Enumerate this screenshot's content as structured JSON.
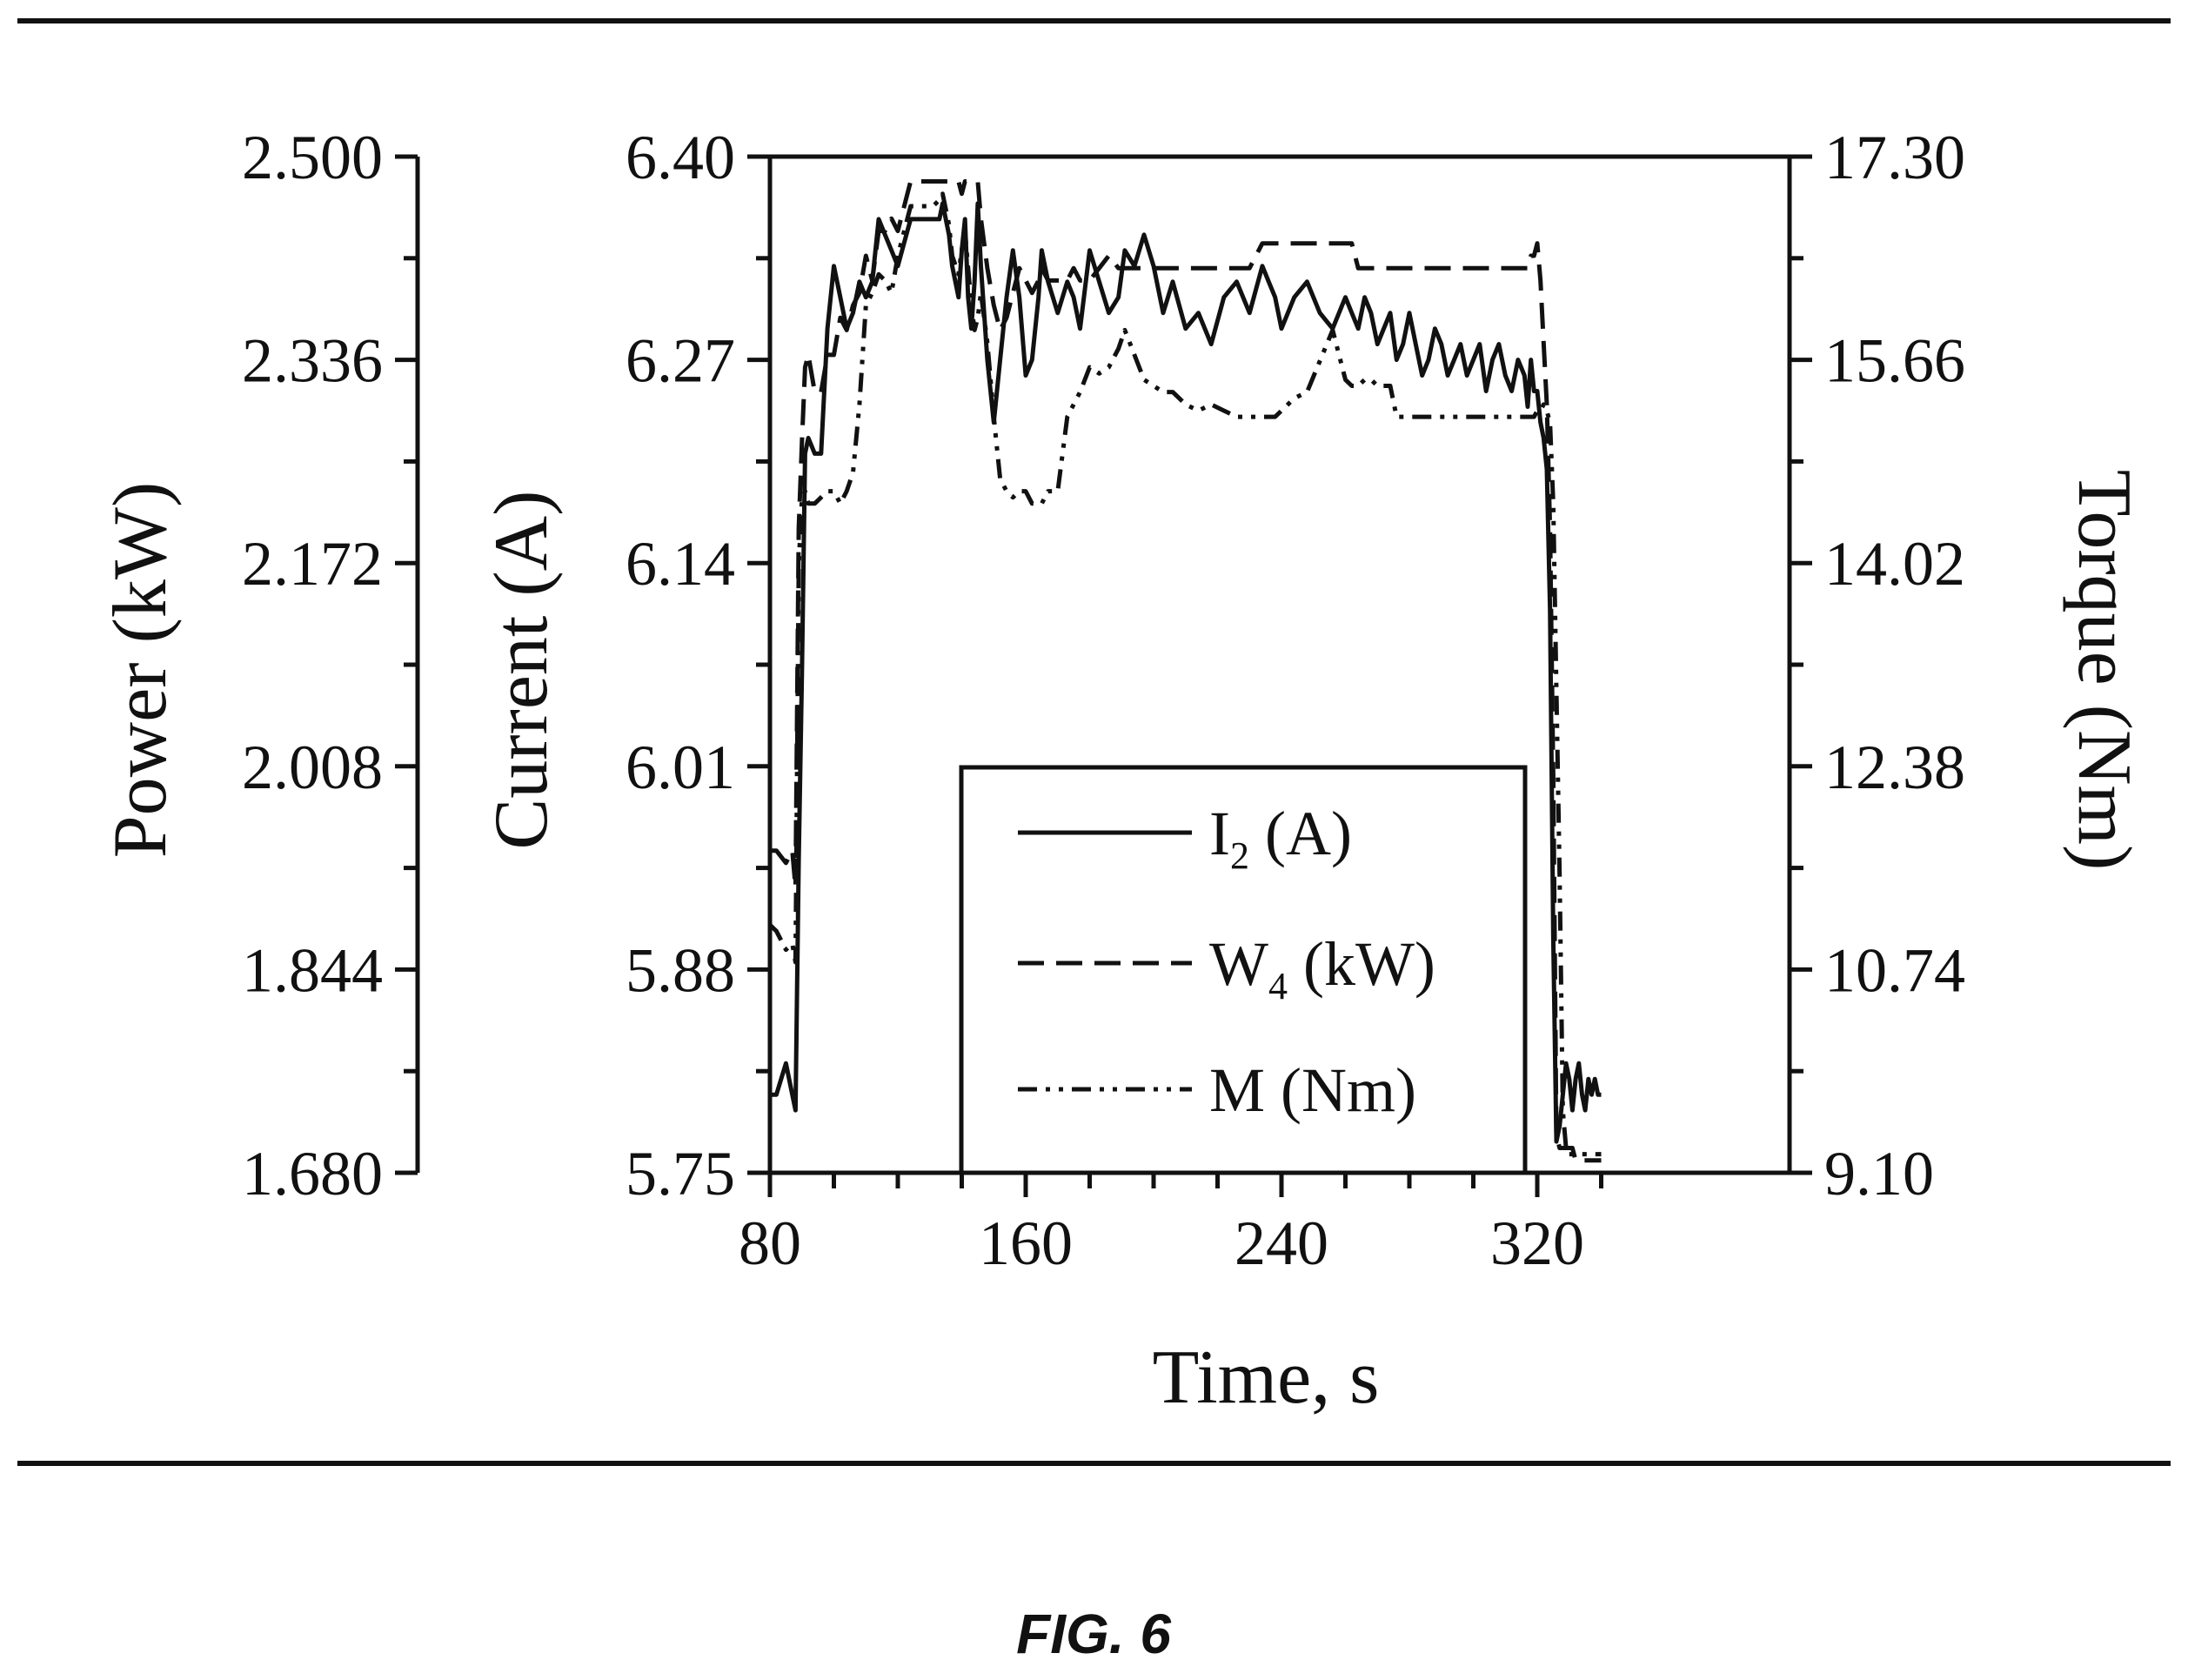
{
  "figure": {
    "caption": "FIG. 6"
  },
  "chart_data": {
    "type": "line",
    "x_axis": {
      "label": "Time, s",
      "range": [
        80,
        325
      ],
      "ticks": [
        "80",
        "160",
        "240",
        "320"
      ],
      "tick_values": [
        80,
        160,
        240,
        320
      ]
    },
    "y_axes": [
      {
        "id": "power",
        "label": "Power (kW)",
        "range": [
          1.68,
          2.5
        ],
        "ticks": [
          "2.500",
          "2.336",
          "2.172",
          "2.008",
          "1.844",
          "1.680"
        ],
        "tick_values": [
          2.5,
          2.336,
          2.172,
          2.008,
          1.844,
          1.68
        ]
      },
      {
        "id": "current",
        "label": "Current (A)",
        "range": [
          5.75,
          6.4
        ],
        "ticks": [
          "6.40",
          "6.27",
          "6.14",
          "6.01",
          "5.88",
          "5.75"
        ],
        "tick_values": [
          6.4,
          6.27,
          6.14,
          6.01,
          5.88,
          5.75
        ]
      },
      {
        "id": "torque",
        "label": "Torque (Nm)",
        "range": [
          9.1,
          17.3
        ],
        "ticks": [
          "17.30",
          "15.66",
          "14.02",
          "12.38",
          "10.74",
          "9.10"
        ],
        "tick_values": [
          17.3,
          15.66,
          14.02,
          12.38,
          10.74,
          9.1
        ]
      }
    ],
    "legend": {
      "position": "bottom-center"
    },
    "series": [
      {
        "name": "I",
        "subscript": "2",
        "unit": "(A)",
        "axis": "current",
        "style": "solid",
        "x": [
          80,
          82,
          85,
          87,
          88,
          89,
          90,
          91,
          92,
          94,
          96,
          98,
          100,
          102,
          104,
          106,
          108,
          110,
          112,
          114,
          116,
          118,
          120,
          124,
          128,
          131,
          133,
          134,
          136,
          137,
          139,
          140,
          141,
          142,
          143,
          144,
          145,
          146,
          148,
          150,
          152,
          154,
          156,
          158,
          160,
          162,
          164,
          165,
          167,
          170,
          173,
          175,
          177,
          180,
          183,
          186,
          189,
          191,
          194,
          197,
          200,
          203,
          206,
          210,
          214,
          218,
          222,
          226,
          230,
          234,
          236,
          238,
          240,
          244,
          248,
          252,
          256,
          260,
          262,
          264,
          266,
          268,
          270,
          272,
          274,
          276,
          278,
          280,
          282,
          284,
          286,
          288,
          290,
          292,
          294,
          296,
          298,
          300,
          302,
          304,
          306,
          308,
          310,
          312,
          314,
          316,
          317,
          318,
          319,
          320,
          321,
          322,
          323,
          324,
          325,
          326,
          327,
          328,
          329,
          330,
          331,
          332,
          333,
          334,
          335,
          336,
          337,
          338,
          339,
          340
        ],
        "y": [
          5.8,
          5.8,
          5.82,
          5.8,
          5.79,
          5.95,
          6.07,
          6.21,
          6.22,
          6.21,
          6.21,
          6.29,
          6.33,
          6.31,
          6.29,
          6.3,
          6.32,
          6.31,
          6.32,
          6.36,
          6.35,
          6.34,
          6.33,
          6.36,
          6.36,
          6.36,
          6.36,
          6.37,
          6.35,
          6.33,
          6.31,
          6.34,
          6.36,
          6.31,
          6.29,
          6.32,
          6.37,
          6.33,
          6.27,
          6.23,
          6.27,
          6.31,
          6.34,
          6.31,
          6.26,
          6.27,
          6.31,
          6.34,
          6.32,
          6.3,
          6.32,
          6.31,
          6.29,
          6.34,
          6.32,
          6.3,
          6.31,
          6.34,
          6.33,
          6.35,
          6.33,
          6.3,
          6.32,
          6.29,
          6.3,
          6.28,
          6.31,
          6.32,
          6.3,
          6.33,
          6.32,
          6.31,
          6.29,
          6.31,
          6.32,
          6.3,
          6.29,
          6.31,
          6.3,
          6.29,
          6.31,
          6.3,
          6.28,
          6.29,
          6.3,
          6.27,
          6.28,
          6.3,
          6.28,
          6.26,
          6.27,
          6.29,
          6.28,
          6.26,
          6.27,
          6.28,
          6.26,
          6.27,
          6.28,
          6.25,
          6.27,
          6.28,
          6.26,
          6.25,
          6.27,
          6.26,
          6.24,
          6.27,
          6.25,
          6.25,
          6.23,
          6.22,
          6.2,
          6.11,
          5.9,
          5.77,
          5.78,
          5.8,
          5.82,
          5.81,
          5.79,
          5.81,
          5.82,
          5.8,
          5.79,
          5.81,
          5.8,
          5.81,
          5.8,
          5.8
        ]
      },
      {
        "name": "W",
        "subscript": "4",
        "unit": "(kW)",
        "axis": "power",
        "style": "dashed",
        "x": [
          80,
          82,
          85,
          87,
          88,
          89,
          90,
          91,
          92,
          94,
          96,
          98,
          100,
          102,
          104,
          106,
          108,
          110,
          112,
          114,
          116,
          118,
          120,
          124,
          128,
          131,
          133,
          134,
          136,
          137,
          139,
          140,
          141,
          142,
          143,
          144,
          145,
          146,
          148,
          150,
          152,
          154,
          156,
          158,
          160,
          162,
          164,
          165,
          167,
          170,
          173,
          175,
          177,
          180,
          183,
          186,
          189,
          191,
          194,
          197,
          200,
          203,
          206,
          210,
          214,
          218,
          222,
          226,
          230,
          234,
          236,
          238,
          240,
          244,
          248,
          252,
          256,
          260,
          262,
          264,
          266,
          268,
          270,
          272,
          274,
          276,
          278,
          280,
          282,
          284,
          286,
          288,
          290,
          292,
          294,
          296,
          298,
          300,
          302,
          304,
          306,
          308,
          310,
          312,
          314,
          316,
          317,
          318,
          319,
          320,
          321,
          322,
          323,
          324,
          325,
          326,
          327,
          328,
          329,
          330,
          331,
          332,
          333,
          334,
          335,
          336,
          337,
          338,
          339,
          340
        ],
        "y": [
          1.94,
          1.94,
          1.93,
          1.94,
          1.91,
          2.2,
          2.27,
          2.33,
          2.34,
          2.31,
          2.31,
          2.34,
          2.34,
          2.37,
          2.36,
          2.38,
          2.39,
          2.42,
          2.4,
          2.44,
          2.44,
          2.45,
          2.44,
          2.48,
          2.48,
          2.48,
          2.48,
          2.48,
          2.48,
          2.48,
          2.48,
          2.47,
          2.48,
          2.48,
          2.48,
          2.48,
          2.48,
          2.45,
          2.41,
          2.38,
          2.36,
          2.37,
          2.39,
          2.41,
          2.4,
          2.39,
          2.4,
          2.41,
          2.4,
          2.4,
          2.4,
          2.41,
          2.4,
          2.4,
          2.41,
          2.42,
          2.41,
          2.41,
          2.41,
          2.41,
          2.41,
          2.41,
          2.41,
          2.41,
          2.41,
          2.41,
          2.41,
          2.41,
          2.41,
          2.43,
          2.43,
          2.43,
          2.43,
          2.43,
          2.43,
          2.43,
          2.43,
          2.43,
          2.43,
          2.41,
          2.41,
          2.41,
          2.41,
          2.41,
          2.41,
          2.41,
          2.41,
          2.41,
          2.41,
          2.41,
          2.41,
          2.41,
          2.41,
          2.41,
          2.41,
          2.41,
          2.41,
          2.41,
          2.41,
          2.41,
          2.41,
          2.41,
          2.41,
          2.41,
          2.41,
          2.41,
          2.41,
          2.42,
          2.42,
          2.43,
          2.4,
          2.35,
          2.3,
          2.2,
          2.0,
          1.71,
          1.7,
          1.7,
          1.7,
          1.7,
          1.7,
          1.69,
          1.69,
          1.69,
          1.69,
          1.69,
          1.69,
          1.69,
          1.69,
          1.69
        ]
      },
      {
        "name": "M",
        "unit": "(Nm)",
        "axis": "torque",
        "style": "dash-dot-dot",
        "x": [
          80,
          82,
          85,
          87,
          88,
          89,
          90,
          91,
          92,
          94,
          96,
          98,
          100,
          102,
          104,
          106,
          108,
          110,
          112,
          114,
          116,
          118,
          120,
          124,
          128,
          131,
          133,
          134,
          136,
          137,
          139,
          140,
          141,
          142,
          143,
          144,
          145,
          146,
          148,
          150,
          152,
          154,
          156,
          158,
          160,
          162,
          164,
          165,
          167,
          170,
          173,
          175,
          177,
          180,
          183,
          186,
          189,
          191,
          194,
          197,
          200,
          203,
          206,
          210,
          214,
          218,
          222,
          226,
          230,
          234,
          236,
          238,
          240,
          244,
          248,
          252,
          256,
          260,
          262,
          264,
          266,
          268,
          270,
          272,
          274,
          276,
          278,
          280,
          282,
          284,
          286,
          288,
          290,
          292,
          294,
          296,
          298,
          300,
          302,
          304,
          306,
          308,
          310,
          312,
          314,
          316,
          317,
          318,
          319,
          320,
          321,
          322,
          323,
          324,
          325,
          326,
          327,
          328,
          329,
          330,
          331,
          332,
          333,
          334,
          335,
          336,
          337,
          338,
          339,
          340
        ],
        "y": [
          11.1,
          11.05,
          10.9,
          10.95,
          10.8,
          14.0,
          14.55,
          14.6,
          14.5,
          14.5,
          14.55,
          14.6,
          14.6,
          14.5,
          14.6,
          14.75,
          15.3,
          16.1,
          16.2,
          16.35,
          16.3,
          16.2,
          16.5,
          16.9,
          16.9,
          16.9,
          16.95,
          17.0,
          16.75,
          16.5,
          16.35,
          16.55,
          16.7,
          16.4,
          16.1,
          15.9,
          16.0,
          16.2,
          15.8,
          15.2,
          14.7,
          14.6,
          14.55,
          14.6,
          14.6,
          14.5,
          14.5,
          14.5,
          14.6,
          14.6,
          15.2,
          15.3,
          15.4,
          15.6,
          15.55,
          15.6,
          15.75,
          15.9,
          15.7,
          15.5,
          15.45,
          15.4,
          15.4,
          15.3,
          15.25,
          15.3,
          15.25,
          15.2,
          15.2,
          15.2,
          15.2,
          15.2,
          15.25,
          15.35,
          15.4,
          15.65,
          15.9,
          15.5,
          15.45,
          15.45,
          15.5,
          15.5,
          15.45,
          15.45,
          15.45,
          15.2,
          15.2,
          15.2,
          15.2,
          15.2,
          15.2,
          15.2,
          15.2,
          15.2,
          15.2,
          15.2,
          15.2,
          15.2,
          15.2,
          15.2,
          15.2,
          15.2,
          15.2,
          15.2,
          15.2,
          15.2,
          15.2,
          15.2,
          15.2,
          15.25,
          15.25,
          15.3,
          15.25,
          15.15,
          14.5,
          13.0,
          11.5,
          9.6,
          9.3,
          9.25,
          9.25,
          9.25,
          9.25,
          9.25,
          9.25,
          9.25,
          9.25,
          9.25,
          9.25,
          9.25
        ]
      }
    ]
  }
}
